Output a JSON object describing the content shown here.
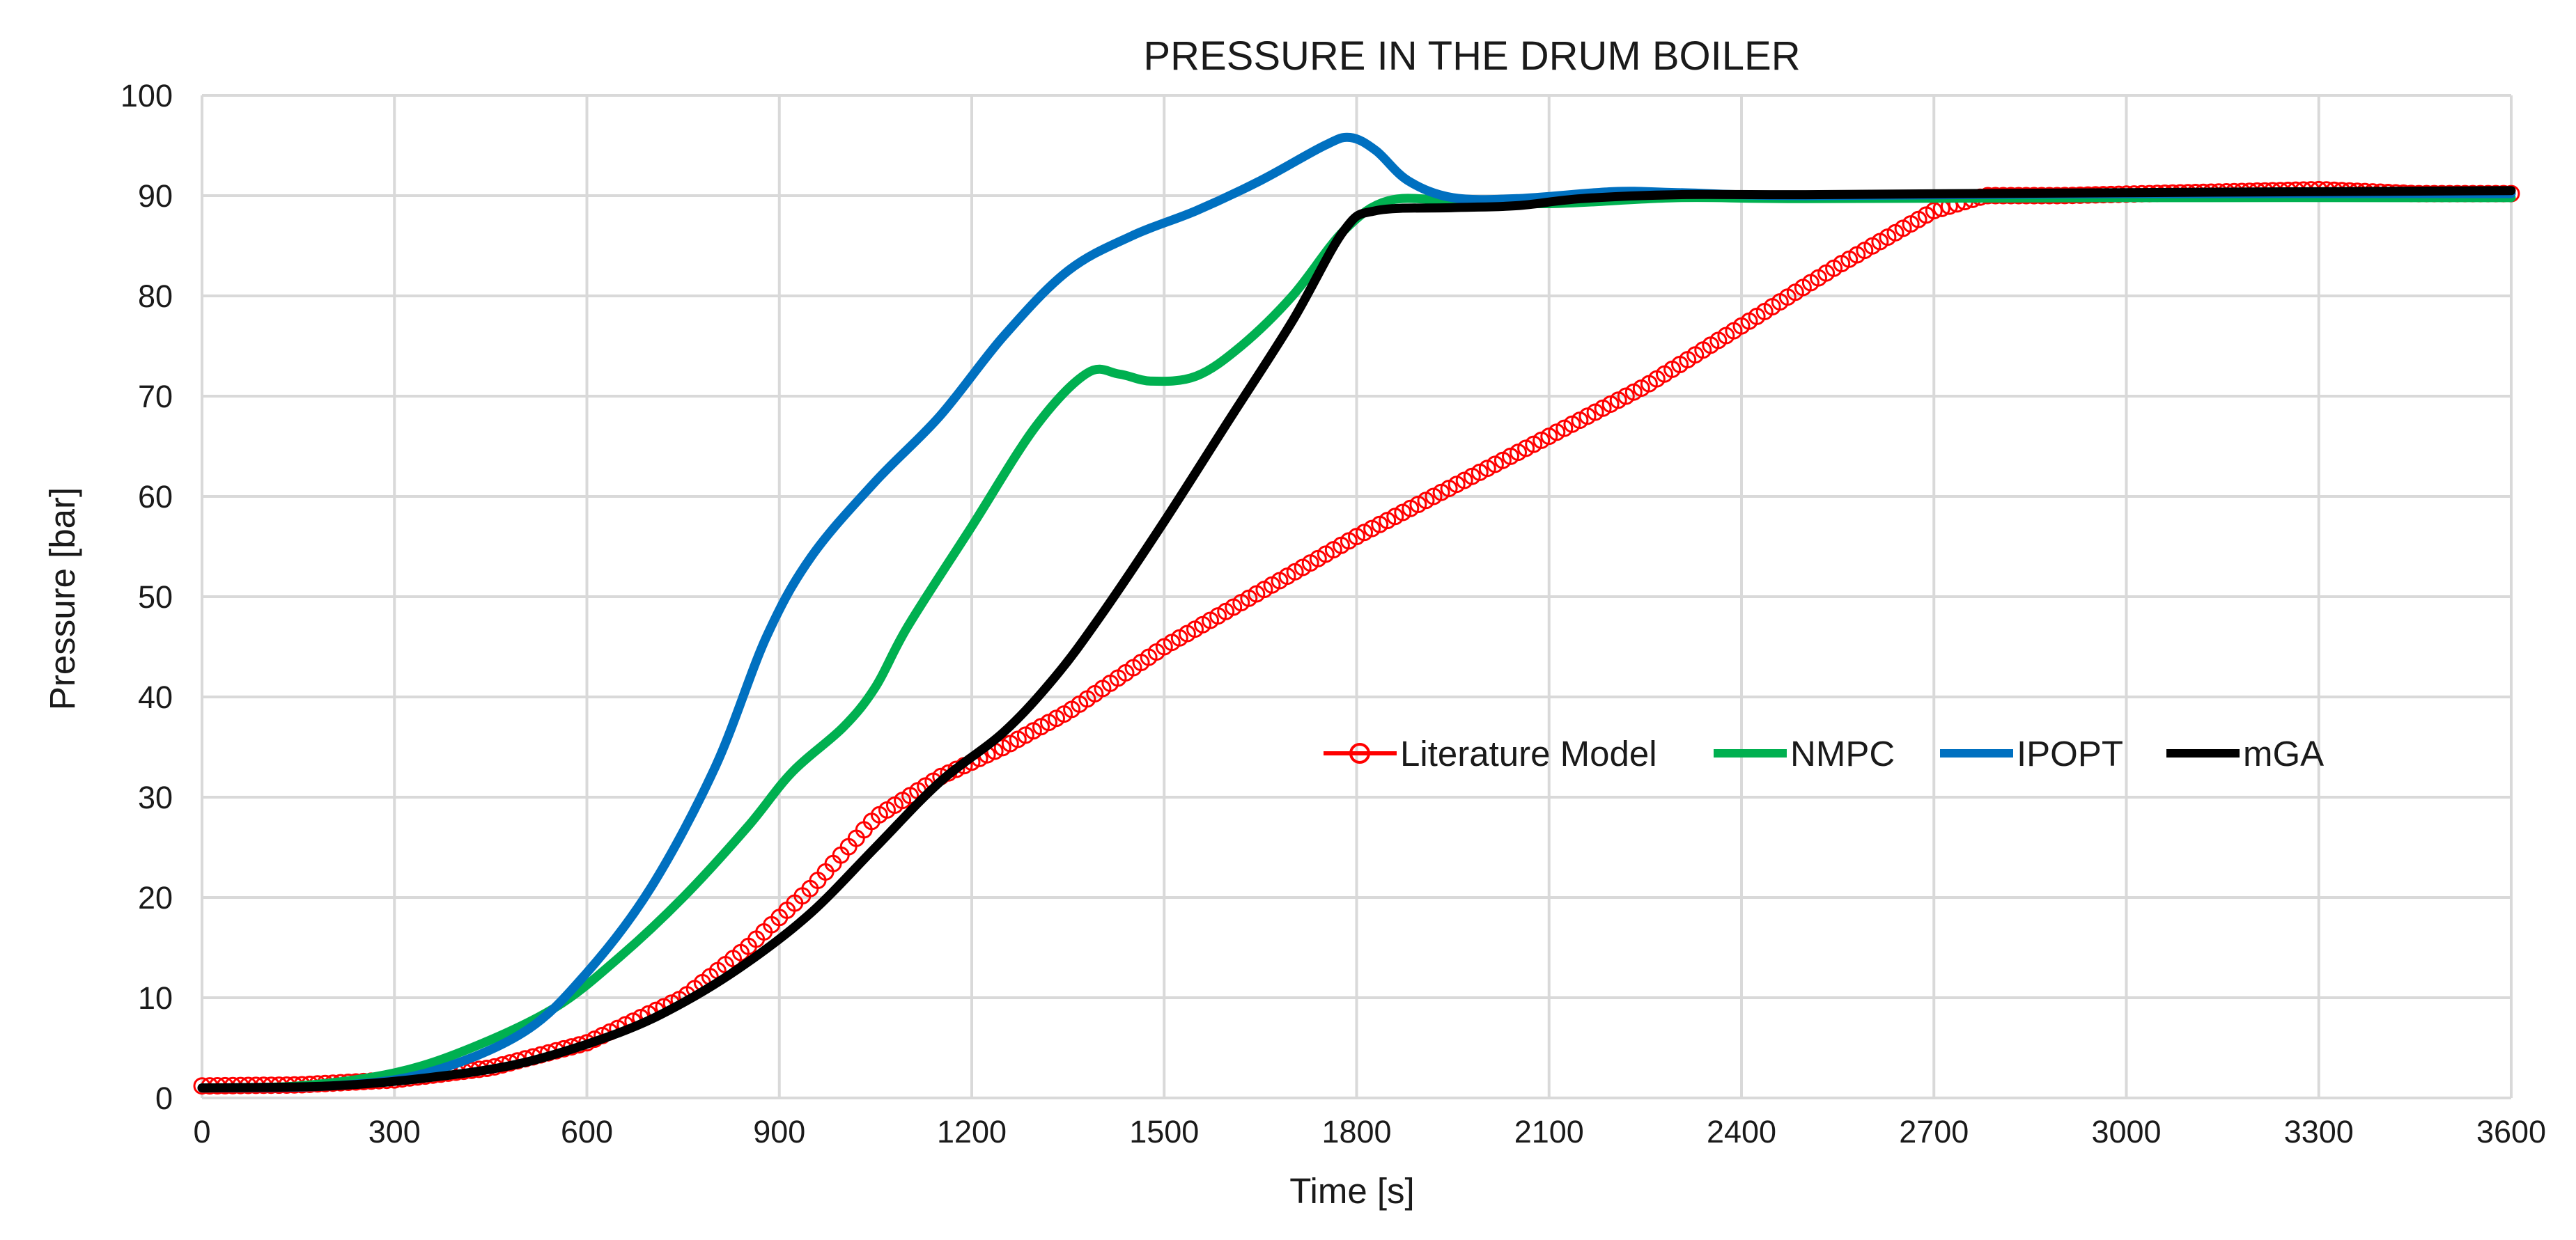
{
  "chart_data": {
    "type": "line",
    "title": "PRESSURE IN THE DRUM BOILER",
    "xlabel": "Time [s]",
    "ylabel": "Pressure [bar]",
    "xlim": [
      0,
      3600
    ],
    "ylim": [
      0,
      100
    ],
    "xticks": [
      0,
      300,
      600,
      900,
      1200,
      1500,
      1800,
      2100,
      2400,
      2700,
      3000,
      3300,
      3600
    ],
    "yticks": [
      0,
      10,
      20,
      30,
      40,
      50,
      60,
      70,
      80,
      90,
      100
    ],
    "grid": true,
    "legend_position": "center-right",
    "series": [
      {
        "name": "Literature Model",
        "color": "#ff0000",
        "marker": "circle-open",
        "points": [
          [
            0,
            1.2
          ],
          [
            150,
            1.3
          ],
          [
            300,
            1.8
          ],
          [
            450,
            3
          ],
          [
            600,
            5.5
          ],
          [
            750,
            10
          ],
          [
            850,
            15
          ],
          [
            950,
            21
          ],
          [
            1050,
            28
          ],
          [
            1150,
            32
          ],
          [
            1250,
            35
          ],
          [
            1350,
            38.5
          ],
          [
            1500,
            45
          ],
          [
            1650,
            50.5
          ],
          [
            1800,
            56
          ],
          [
            1950,
            61
          ],
          [
            2100,
            66
          ],
          [
            2250,
            71
          ],
          [
            2400,
            77
          ],
          [
            2550,
            83
          ],
          [
            2700,
            88.5
          ],
          [
            2780,
            90
          ],
          [
            2900,
            90
          ],
          [
            3100,
            90.3
          ],
          [
            3300,
            90.6
          ],
          [
            3450,
            90.2
          ],
          [
            3600,
            90.2
          ]
        ]
      },
      {
        "name": "NMPC",
        "color": "#00b050",
        "marker": "none",
        "points": [
          [
            0,
            1
          ],
          [
            150,
            1.2
          ],
          [
            300,
            2.5
          ],
          [
            420,
            5
          ],
          [
            550,
            9
          ],
          [
            650,
            14
          ],
          [
            750,
            20
          ],
          [
            850,
            27
          ],
          [
            920,
            32.5
          ],
          [
            1000,
            37
          ],
          [
            1050,
            41
          ],
          [
            1100,
            47
          ],
          [
            1200,
            57
          ],
          [
            1300,
            67
          ],
          [
            1380,
            72.3
          ],
          [
            1430,
            72.2
          ],
          [
            1480,
            71.5
          ],
          [
            1550,
            72
          ],
          [
            1620,
            75
          ],
          [
            1700,
            80
          ],
          [
            1780,
            86.5
          ],
          [
            1850,
            89.5
          ],
          [
            1950,
            89.5
          ],
          [
            2100,
            89.2
          ],
          [
            2300,
            89.8
          ],
          [
            2500,
            89.7
          ],
          [
            3000,
            89.8
          ],
          [
            3600,
            89.8
          ]
        ]
      },
      {
        "name": "IPOPT",
        "color": "#0070c0",
        "marker": "none",
        "points": [
          [
            0,
            1
          ],
          [
            200,
            1.2
          ],
          [
            350,
            2.5
          ],
          [
            500,
            6.5
          ],
          [
            600,
            12.5
          ],
          [
            700,
            21
          ],
          [
            800,
            33
          ],
          [
            880,
            46
          ],
          [
            950,
            54
          ],
          [
            1050,
            61.5
          ],
          [
            1150,
            68
          ],
          [
            1250,
            76
          ],
          [
            1350,
            82.5
          ],
          [
            1450,
            86
          ],
          [
            1550,
            88.5
          ],
          [
            1650,
            91.5
          ],
          [
            1750,
            95
          ],
          [
            1790,
            95.8
          ],
          [
            1830,
            94.5
          ],
          [
            1880,
            91.5
          ],
          [
            1950,
            89.8
          ],
          [
            2050,
            89.7
          ],
          [
            2200,
            90.4
          ],
          [
            2300,
            90.3
          ],
          [
            2500,
            90
          ],
          [
            3000,
            90.2
          ],
          [
            3600,
            90.2
          ]
        ]
      },
      {
        "name": "mGA",
        "color": "#000000",
        "marker": "none",
        "points": [
          [
            0,
            1
          ],
          [
            200,
            1.2
          ],
          [
            350,
            2
          ],
          [
            500,
            3.5
          ],
          [
            650,
            6.5
          ],
          [
            750,
            9.5
          ],
          [
            850,
            13.5
          ],
          [
            950,
            18.5
          ],
          [
            1050,
            25
          ],
          [
            1150,
            31.5
          ],
          [
            1250,
            36.5
          ],
          [
            1330,
            42
          ],
          [
            1400,
            48
          ],
          [
            1500,
            57.5
          ],
          [
            1600,
            67.5
          ],
          [
            1700,
            77.5
          ],
          [
            1780,
            86.5
          ],
          [
            1830,
            88.5
          ],
          [
            1950,
            88.8
          ],
          [
            2050,
            89
          ],
          [
            2150,
            89.7
          ],
          [
            2300,
            90.1
          ],
          [
            2500,
            90.1
          ],
          [
            3000,
            90.3
          ],
          [
            3600,
            90.5
          ]
        ]
      }
    ]
  }
}
